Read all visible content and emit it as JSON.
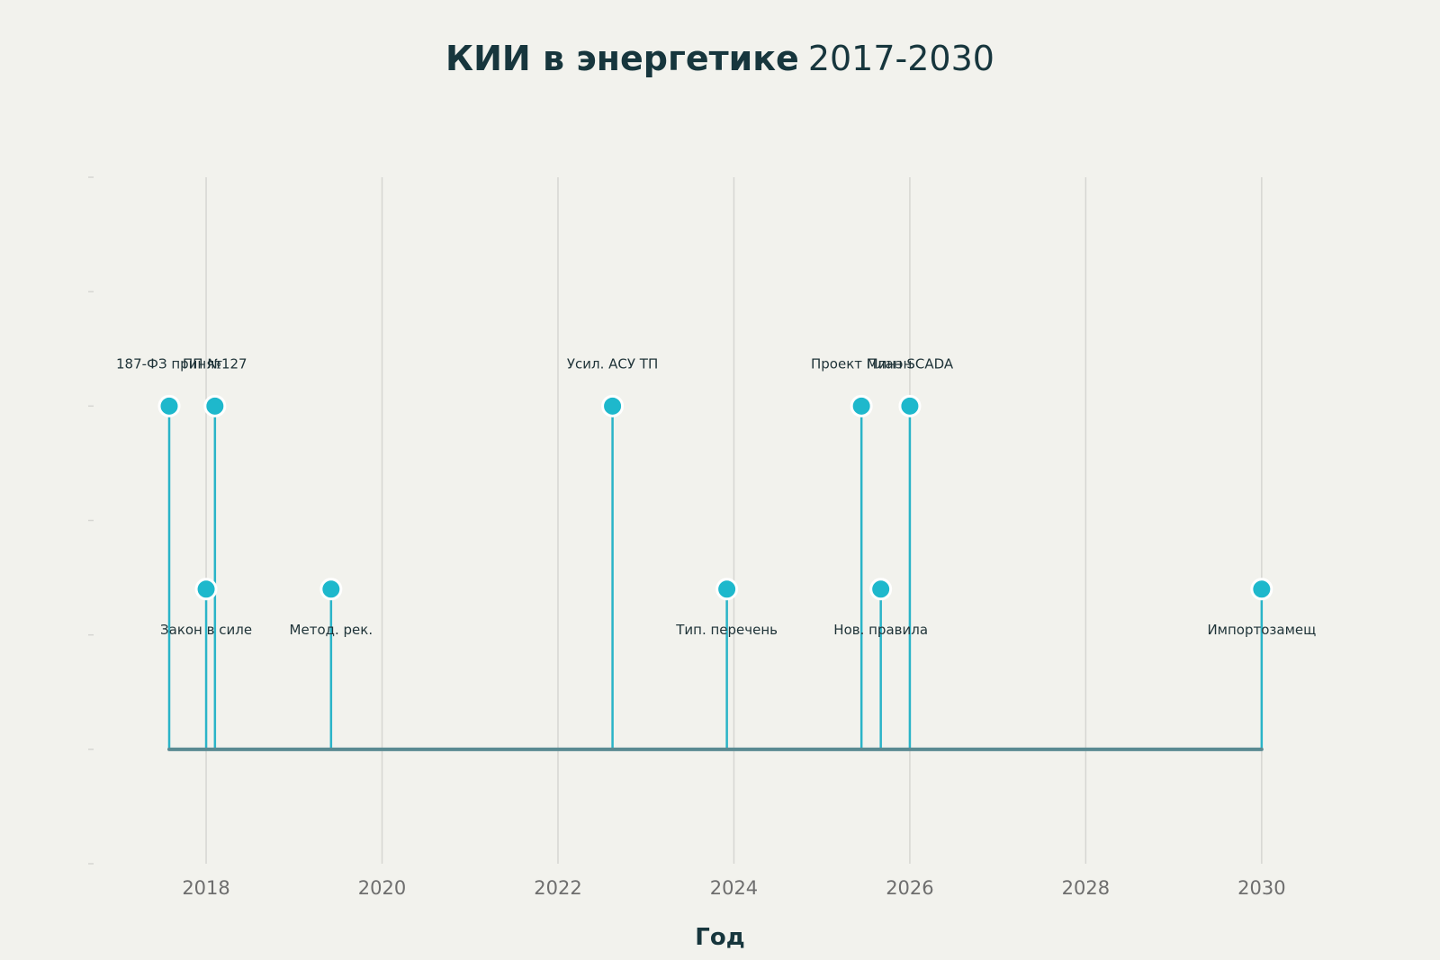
{
  "chart_data": {
    "type": "timeline",
    "title_bold": "КИИ в энергетике",
    "title_rest": "2017-2030",
    "xlabel": "Год",
    "xlim": [
      2016.7,
      2031.7
    ],
    "ylim": [
      -1,
      5
    ],
    "x_ticks": [
      2018,
      2020,
      2022,
      2024,
      2026,
      2028,
      2030
    ],
    "x_tick_labels": [
      "2018",
      "2020",
      "2022",
      "2024",
      "2026",
      "2028",
      "2030"
    ],
    "y_ticks": [
      -1,
      0,
      1,
      2,
      3,
      4,
      5
    ],
    "grid": "vertical",
    "colors": {
      "background": "#f2f2ed",
      "stem": "#2ab4c8",
      "marker": "#1eb8cc",
      "marker_edge": "#ffffff",
      "baseline": "#5a8a92",
      "grid": "#d6d6d2",
      "title": "#17363d",
      "label": "#1f3338",
      "tick": "#6e6e6e"
    },
    "baseline_range": [
      2017.58,
      2030.0
    ],
    "events": [
      {
        "label": "187-ФЗ принят",
        "x": 2017.58,
        "y": 3.0
      },
      {
        "label": "Закон в силе",
        "x": 2018.0,
        "y": 1.4
      },
      {
        "label": "ПП №127",
        "x": 2018.1,
        "y": 3.0
      },
      {
        "label": "Метод. рек.",
        "x": 2019.42,
        "y": 1.4
      },
      {
        "label": "Усил. АСУ ТП",
        "x": 2022.62,
        "y": 3.0
      },
      {
        "label": "Тип. перечень",
        "x": 2023.92,
        "y": 1.4
      },
      {
        "label": "Проект Минэн",
        "x": 2025.45,
        "y": 3.0
      },
      {
        "label": "Нов. правила",
        "x": 2025.67,
        "y": 1.4
      },
      {
        "label": "План SCADA",
        "x": 2026.0,
        "y": 3.0
      },
      {
        "label": "Импортозамещ",
        "x": 2030.0,
        "y": 1.4
      }
    ]
  }
}
